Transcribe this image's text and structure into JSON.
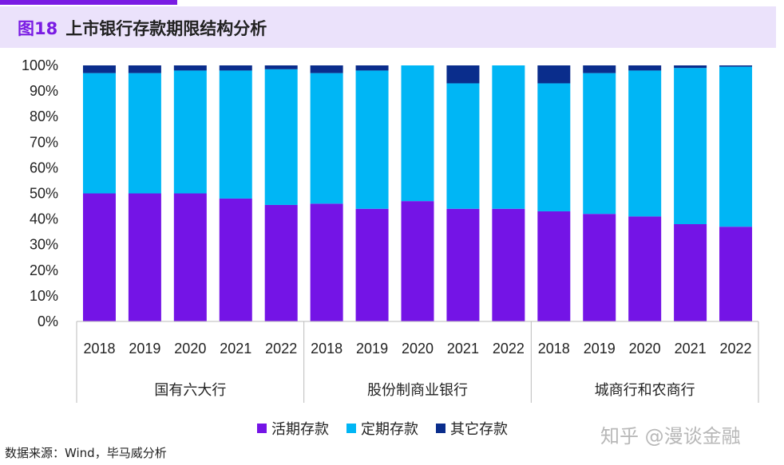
{
  "header": {
    "figure_no": "图18",
    "title": "上市银行存款期限结构分析"
  },
  "source": "数据来源：Wind，毕马威分析",
  "watermark": "知乎 @漫谈金融",
  "chart_data": {
    "type": "bar",
    "stacked": true,
    "ylim": [
      0,
      100
    ],
    "yticks": [
      "0%",
      "10%",
      "20%",
      "30%",
      "40%",
      "50%",
      "60%",
      "70%",
      "80%",
      "90%",
      "100%"
    ],
    "groups": [
      "国有六大行",
      "股份制商业银行",
      "城商行和农商行"
    ],
    "categories": [
      "2018",
      "2019",
      "2020",
      "2021",
      "2022",
      "2018",
      "2019",
      "2020",
      "2021",
      "2022",
      "2018",
      "2019",
      "2020",
      "2021",
      "2022"
    ],
    "legend_position": "bottom",
    "grid": false,
    "series": [
      {
        "name": "活期存款",
        "color": "#7414e6",
        "values": [
          50,
          50,
          50,
          48,
          45.5,
          46,
          44,
          47,
          44,
          44,
          43,
          42,
          41,
          38,
          37
        ]
      },
      {
        "name": "定期存款",
        "color": "#00b6f5",
        "values": [
          47,
          47,
          48,
          50,
          53,
          51,
          54,
          53,
          49,
          56,
          50,
          55,
          57,
          61,
          62.5
        ]
      },
      {
        "name": "其它存款",
        "color": "#0a2d8c",
        "values": [
          3,
          3,
          2,
          2,
          1.5,
          3,
          2,
          0,
          7,
          0,
          7,
          3,
          2,
          1,
          0.5
        ]
      }
    ]
  }
}
